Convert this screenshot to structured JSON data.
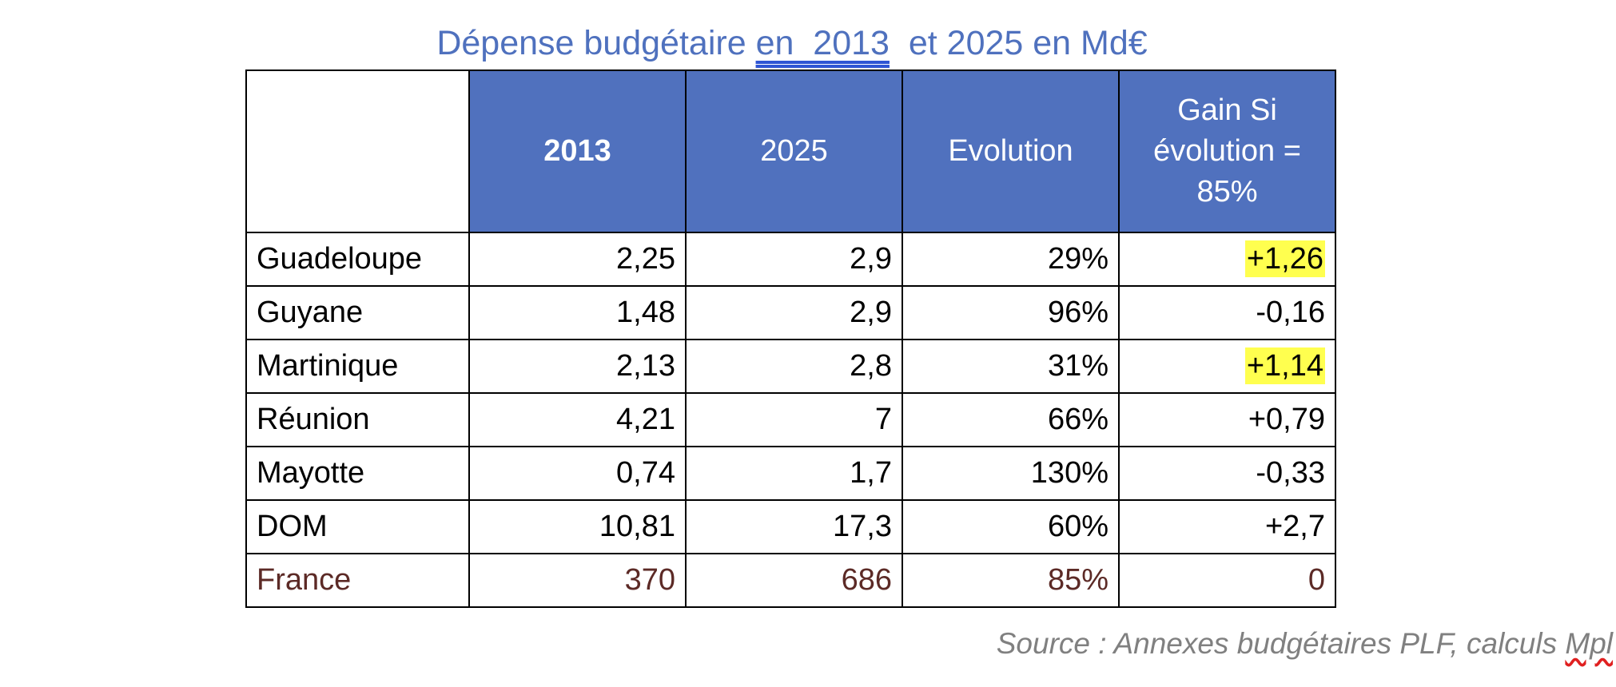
{
  "title": {
    "part1": "Dépense budgétaire ",
    "underlined": "en  2013",
    "part2": "  et 2025 en Md€"
  },
  "colors": {
    "header_bg": "#5071BE",
    "title": "#4F71BE",
    "highlight": "#FFFF4F",
    "france_text": "#5C2A26"
  },
  "table": {
    "headers": [
      "",
      "2013",
      "2025",
      "Evolution",
      "Gain Si évolution = 85%"
    ],
    "rows": [
      {
        "label": "Guadeloupe",
        "y2013": "2,25",
        "y2025": "2,9",
        "evolution": "29%",
        "gain": "+1,26",
        "highlight": true
      },
      {
        "label": "Guyane",
        "y2013": "1,48",
        "y2025": "2,9",
        "evolution": "96%",
        "gain": "-0,16",
        "highlight": false
      },
      {
        "label": "Martinique",
        "y2013": "2,13",
        "y2025": "2,8",
        "evolution": "31%",
        "gain": "+1,14",
        "highlight": true
      },
      {
        "label": "Réunion",
        "y2013": "4,21",
        "y2025": "7",
        "evolution": "66%",
        "gain": "+0,79",
        "highlight": false
      },
      {
        "label": "Mayotte",
        "y2013": "0,74",
        "y2025": "1,7",
        "evolution": "130%",
        "gain": "-0,33",
        "highlight": false
      },
      {
        "label": "DOM",
        "y2013": "10,81",
        "y2025": "17,3",
        "evolution": "60%",
        "gain": "+2,7",
        "highlight": false
      },
      {
        "label": "France",
        "y2013": "370",
        "y2025": "686",
        "evolution": "85%",
        "gain": "0",
        "highlight": false
      }
    ]
  },
  "source": {
    "text": "Source : Annexes budgétaires PLF, calculs ",
    "misspelled": "Mpl"
  }
}
